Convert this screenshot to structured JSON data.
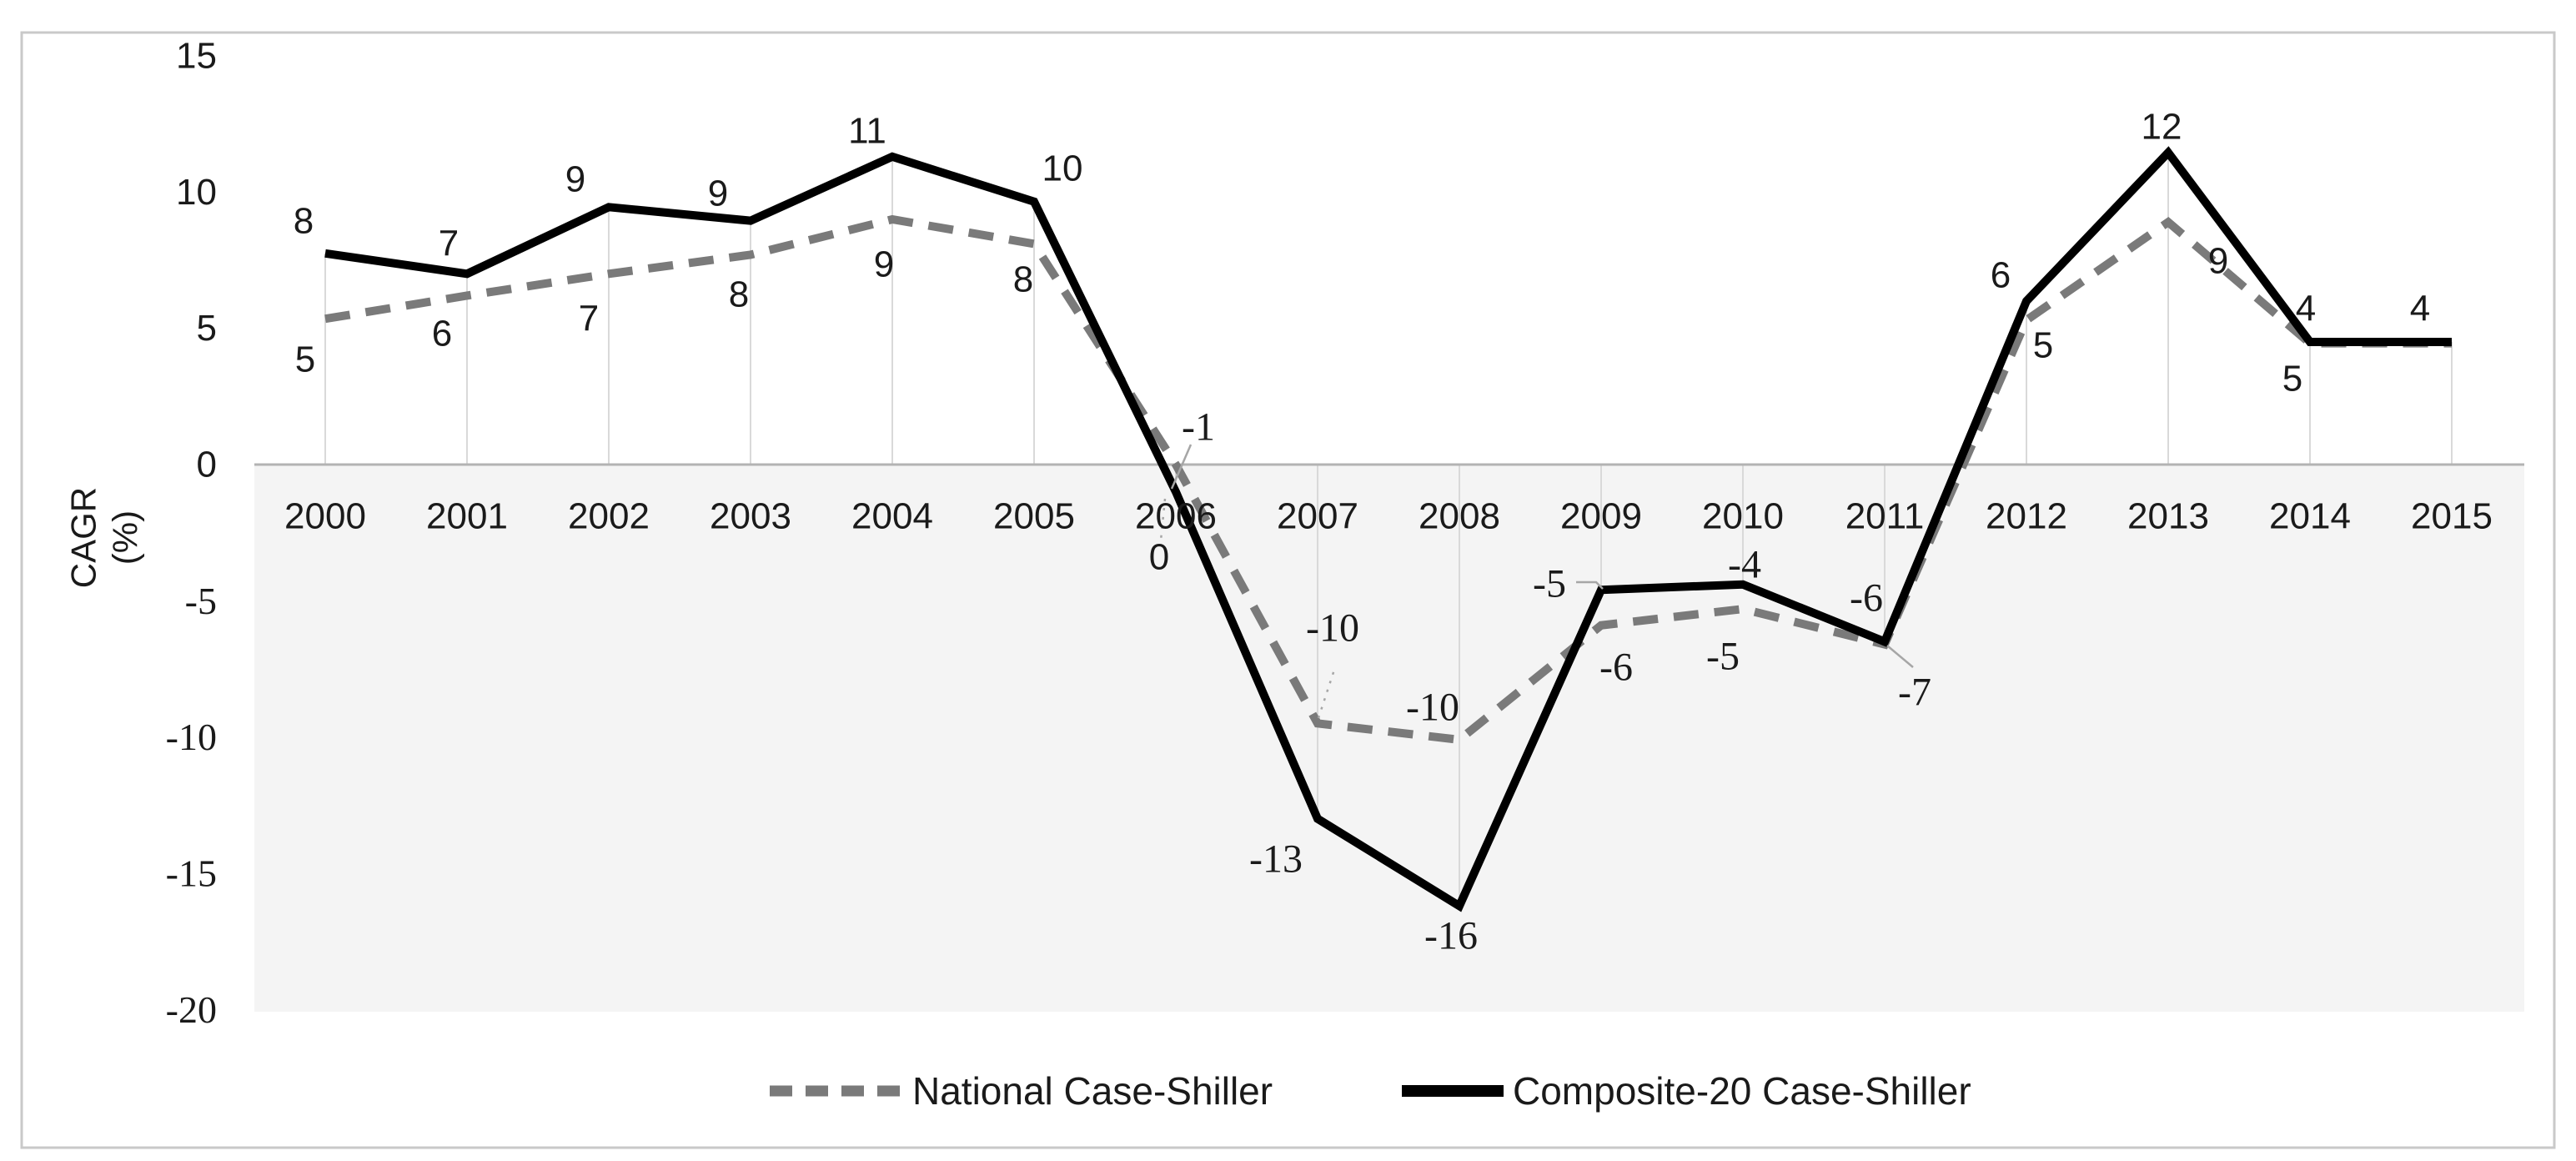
{
  "chart_data": {
    "type": "line",
    "title": "",
    "ylabel_lines": [
      "CAGR",
      "(%)"
    ],
    "xlabel": "",
    "categories": [
      "2000",
      "2001",
      "2002",
      "2003",
      "2004",
      "2005",
      "2006",
      "2007",
      "2008",
      "2009",
      "2010",
      "2011",
      "2012",
      "2013",
      "2014",
      "2015"
    ],
    "y_ticks": [
      "15",
      "10",
      "5",
      "0",
      "-5",
      "-10",
      "-15",
      "-20"
    ],
    "y_tick_values": [
      15,
      10,
      5,
      0,
      -5,
      -10,
      -15,
      -20
    ],
    "ylim": [
      -20,
      15
    ],
    "grid": "vertical drop lines from zero axis to Composite-20 points; shaded band below zero",
    "legend_position": "bottom-center",
    "series": [
      {
        "name": "National Case-Shiller",
        "style": "dashed",
        "color": "#7a7a7a",
        "values": [
          5,
          6,
          7,
          8,
          9,
          8,
          0,
          -10,
          -10,
          -6,
          -5,
          -7,
          5,
          9,
          5,
          4
        ],
        "plotted_values": [
          5.35,
          6.2,
          7.0,
          7.7,
          9.0,
          8.1,
          0.0,
          -9.5,
          -10.1,
          -5.9,
          -5.3,
          -6.6,
          5.3,
          8.9,
          4.45,
          4.45
        ],
        "point_labels": [
          "5",
          "6",
          "7",
          "8",
          "9",
          "8",
          "0",
          "-10",
          "-10",
          "-6",
          "-5",
          "-7",
          "5",
          "9",
          "5",
          ""
        ],
        "label_positions": [
          [
            366,
            431
          ],
          [
            530,
            400
          ],
          [
            706,
            382
          ],
          [
            886,
            353
          ],
          [
            1060,
            317
          ],
          [
            1227,
            335
          ],
          [
            1390,
            668
          ],
          [
            1598,
            753
          ],
          [
            1718,
            848
          ],
          [
            1938,
            800
          ],
          [
            2066,
            787
          ],
          [
            2296,
            830
          ],
          [
            2450,
            414
          ],
          [
            2660,
            313
          ],
          [
            2749,
            454
          ],
          null
        ]
      },
      {
        "name": "Composite-20 Case-Shiller",
        "style": "solid",
        "color": "#000000",
        "values": [
          8,
          7,
          9,
          9,
          11,
          10,
          -1,
          -13,
          -16,
          -5,
          -4,
          -6,
          6,
          12,
          4,
          4
        ],
        "plotted_values": [
          7.75,
          7.0,
          9.45,
          8.95,
          11.3,
          9.65,
          -1.0,
          -13.0,
          -16.2,
          -4.6,
          -4.4,
          -6.5,
          6.0,
          11.45,
          4.5,
          4.5
        ],
        "point_labels": [
          "8",
          "7",
          "9",
          "9",
          "11",
          "10",
          "-1",
          "-13",
          "-16",
          "-5",
          "-4",
          "-6",
          "6",
          "12",
          "4",
          "4"
        ],
        "label_positions": [
          [
            364,
            265
          ],
          [
            538,
            292
          ],
          [
            690,
            215
          ],
          [
            861,
            232
          ],
          [
            1040,
            157
          ],
          [
            1274,
            202
          ],
          [
            1437,
            512
          ],
          [
            1530,
            1030
          ],
          [
            1740,
            1122
          ],
          [
            1858,
            700
          ],
          [
            2092,
            677
          ],
          [
            2238,
            717
          ],
          [
            2399,
            330
          ],
          [
            2592,
            152
          ],
          [
            2765,
            370
          ],
          [
            2902,
            370
          ]
        ]
      }
    ],
    "leader_lines": [
      {
        "style": "solid",
        "points": [
          [
            1428,
            533
          ],
          [
            1405,
            586
          ]
        ]
      },
      {
        "style": "solid",
        "points": [
          [
            1890,
            698
          ],
          [
            1914,
            698
          ],
          [
            1922,
            706
          ]
        ]
      },
      {
        "style": "solid",
        "points": [
          [
            2263,
            774
          ],
          [
            2294,
            800
          ]
        ]
      },
      {
        "style": "dotted",
        "points": [
          [
            1581,
            861
          ],
          [
            1601,
            800
          ]
        ]
      },
      {
        "style": "dotted",
        "points": [
          [
            1397,
            598
          ],
          [
            1392,
            648
          ]
        ]
      }
    ],
    "colors": {
      "axis_line": "#b3b3b3",
      "drop_line": "#d9d9d9",
      "below_zero_band": "#f4f4f4",
      "border": "#c9c9c9",
      "text": "#1a1a1a",
      "leader": "#a6a6a6"
    }
  },
  "legend": {
    "items": [
      {
        "label": "National Case-Shiller",
        "swatch": "dashed-gray-line"
      },
      {
        "label": "Composite-20 Case-Shiller",
        "swatch": "solid-black-line"
      }
    ]
  }
}
